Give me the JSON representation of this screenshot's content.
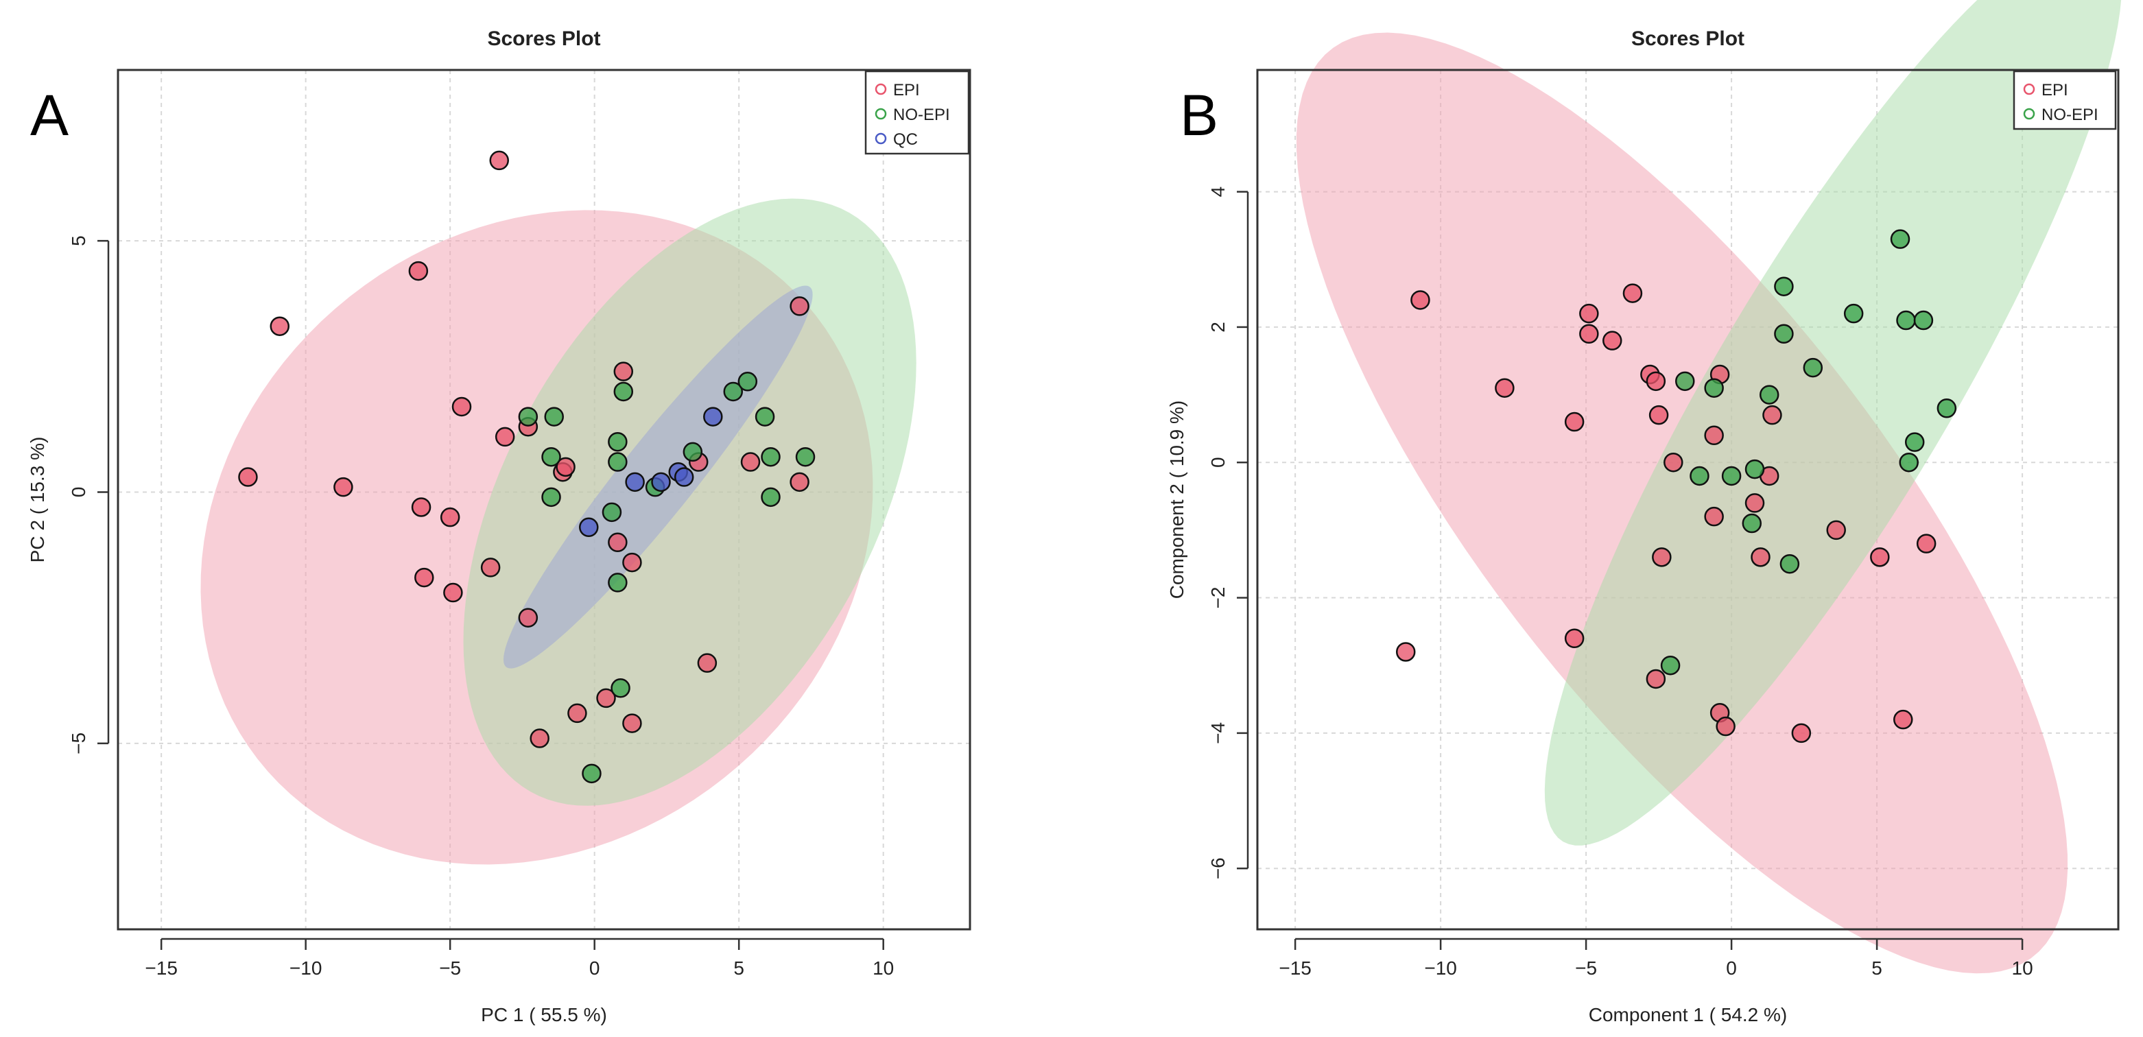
{
  "chart_data": [
    {
      "type": "scatter",
      "panel_label": "A",
      "title": "Scores Plot",
      "xlabel": "PC 1 ( 55.5 %)",
      "ylabel": "PC 2 ( 15.3 %)",
      "xlim": [
        -16.5,
        13
      ],
      "ylim": [
        -8.7,
        8.4
      ],
      "xticks": [
        -15,
        -10,
        -5,
        0,
        5,
        10
      ],
      "yticks": [
        -5,
        0,
        5
      ],
      "grid": true,
      "legend_position": "top-right",
      "series": [
        {
          "name": "EPI",
          "color": "#e8546c",
          "fill": "#f2a0b0",
          "ellipse": {
            "center": [
              -2,
              -0.9
            ],
            "semi_axes": [
              11.7,
              6.4
            ],
            "angle": 7
          },
          "points": [
            [
              -3.3,
              6.6
            ],
            [
              -6.1,
              4.4
            ],
            [
              -10.9,
              3.3
            ],
            [
              -12,
              0.3
            ],
            [
              -8.7,
              0.1
            ],
            [
              -4.6,
              1.7
            ],
            [
              -3.1,
              1.1
            ],
            [
              -2.3,
              1.3
            ],
            [
              -1.1,
              0.4
            ],
            [
              -1,
              0.5
            ],
            [
              -6,
              -0.3
            ],
            [
              -5,
              -0.5
            ],
            [
              -5.9,
              -1.7
            ],
            [
              -4.9,
              -2
            ],
            [
              -3.6,
              -1.5
            ],
            [
              -2.3,
              -2.5
            ],
            [
              1,
              2.4
            ],
            [
              0.8,
              -1
            ],
            [
              1.3,
              -1.4
            ],
            [
              3.6,
              0.6
            ],
            [
              5.4,
              0.6
            ],
            [
              7.1,
              3.7
            ],
            [
              7.1,
              0.2
            ],
            [
              3.9,
              -3.4
            ],
            [
              0.4,
              -4.1
            ],
            [
              -0.6,
              -4.4
            ],
            [
              1.3,
              -4.6
            ],
            [
              -1.9,
              -4.9
            ]
          ]
        },
        {
          "name": "NO-EPI",
          "color": "#3aa34a",
          "fill": "#a8dca8",
          "ellipse": {
            "center": [
              3.3,
              -0.2
            ],
            "semi_axes": [
              8.6,
              4.9
            ],
            "angle": 30
          },
          "points": [
            [
              -2.3,
              1.5
            ],
            [
              -1.4,
              1.5
            ],
            [
              -1.5,
              0.7
            ],
            [
              -1.5,
              -0.1
            ],
            [
              0.8,
              1
            ],
            [
              1,
              2
            ],
            [
              0.8,
              0.6
            ],
            [
              0.6,
              -0.4
            ],
            [
              0.8,
              -1.8
            ],
            [
              0.9,
              -3.9
            ],
            [
              -0.1,
              -5.6
            ],
            [
              2.1,
              0.1
            ],
            [
              3.4,
              0.8
            ],
            [
              4.8,
              2
            ],
            [
              5.3,
              2.2
            ],
            [
              5.9,
              1.5
            ],
            [
              6.1,
              0.7
            ],
            [
              7.3,
              0.7
            ],
            [
              6.1,
              -0.1
            ]
          ]
        },
        {
          "name": "QC",
          "color": "#4a5bc6",
          "fill": "#9aa3d6",
          "ellipse": {
            "center": [
              2.2,
              0.3
            ],
            "semi_axes": [
              6.5,
              0.95
            ],
            "angle": 35
          },
          "points": [
            [
              -0.2,
              -0.7
            ],
            [
              1.4,
              0.2
            ],
            [
              2.3,
              0.2
            ],
            [
              2.9,
              0.4
            ],
            [
              3.1,
              0.3
            ],
            [
              4.1,
              1.5
            ]
          ]
        }
      ]
    },
    {
      "type": "scatter",
      "panel_label": "B",
      "title": "Scores Plot",
      "xlabel": "Component 1 ( 54.2 %)",
      "ylabel": "Component 2 ( 10.9 %)",
      "xlim": [
        -16.3,
        13.3
      ],
      "ylim": [
        -6.9,
        5.8
      ],
      "xticks": [
        -15,
        -10,
        -5,
        0,
        5,
        10
      ],
      "yticks": [
        -6,
        -4,
        -2,
        0,
        2,
        4
      ],
      "grid": true,
      "legend_position": "top-right",
      "series": [
        {
          "name": "EPI",
          "color": "#e8546c",
          "fill": "#f2a0b0",
          "ellipse": {
            "center": [
              -1.7,
              -0.6
            ],
            "semi_axes": [
              14.4,
              4.1
            ],
            "angle": -24
          },
          "points": [
            [
              -10.7,
              2.4
            ],
            [
              -7.8,
              1.1
            ],
            [
              -5.4,
              0.6
            ],
            [
              -4.9,
              2.2
            ],
            [
              -4.9,
              1.9
            ],
            [
              -4.1,
              1.8
            ],
            [
              -3.4,
              2.5
            ],
            [
              -2.8,
              1.3
            ],
            [
              -2.6,
              1.2
            ],
            [
              -2.5,
              0.7
            ],
            [
              -0.4,
              1.3
            ],
            [
              -0.6,
              0.4
            ],
            [
              -2,
              0
            ],
            [
              1.3,
              -0.2
            ],
            [
              1.4,
              0.7
            ],
            [
              -0.6,
              -0.8
            ],
            [
              -2.4,
              -1.4
            ],
            [
              1,
              -1.4
            ],
            [
              3.6,
              -1
            ],
            [
              5.1,
              -1.4
            ],
            [
              6.7,
              -1.2
            ],
            [
              -11.2,
              -2.8
            ],
            [
              -5.4,
              -2.6
            ],
            [
              -2.6,
              -3.2
            ],
            [
              -0.4,
              -3.7
            ],
            [
              -0.2,
              -3.9
            ],
            [
              2.4,
              -4
            ],
            [
              5.9,
              -3.8
            ],
            [
              0.8,
              -0.6
            ]
          ]
        },
        {
          "name": "NO-EPI",
          "color": "#3aa34a",
          "fill": "#a8dca8",
          "ellipse": {
            "center": [
              3.5,
              1.1
            ],
            "semi_axes": [
              11.7,
              2.7
            ],
            "angle": 33
          },
          "points": [
            [
              5.8,
              3.3
            ],
            [
              6,
              2.1
            ],
            [
              6.6,
              2.1
            ],
            [
              1.8,
              2.6
            ],
            [
              1.8,
              1.9
            ],
            [
              4.2,
              2.2
            ],
            [
              2.8,
              1.4
            ],
            [
              1.3,
              1
            ],
            [
              -1.6,
              1.2
            ],
            [
              -0.6,
              1.1
            ],
            [
              7.4,
              0.8
            ],
            [
              6.3,
              0.3
            ],
            [
              6.1,
              0
            ],
            [
              -1.1,
              -0.2
            ],
            [
              0,
              -0.2
            ],
            [
              0.8,
              -0.1
            ],
            [
              0.7,
              -0.9
            ],
            [
              2,
              -1.5
            ],
            [
              -2.1,
              -3
            ]
          ]
        }
      ]
    }
  ]
}
